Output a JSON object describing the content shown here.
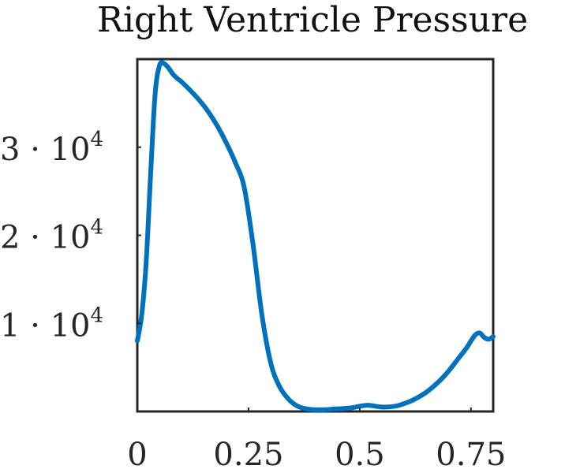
{
  "chart_data": {
    "type": "line",
    "title": "Right Ventricle Pressure",
    "xlabel": "",
    "ylabel": "",
    "xlim": [
      0,
      0.8
    ],
    "ylim": [
      0,
      40000
    ],
    "grid": false,
    "line_color": "#0072BD",
    "axis_color": "#262626",
    "x_ticks": [
      {
        "value": 0,
        "label": "0"
      },
      {
        "value": 0.25,
        "label": "0.25"
      },
      {
        "value": 0.5,
        "label": "0.5"
      },
      {
        "value": 0.75,
        "label": "0.75"
      }
    ],
    "y_ticks": [
      {
        "value": 10000,
        "mantissa": "1 · 10",
        "exponent": "4"
      },
      {
        "value": 20000,
        "mantissa": "2 · 10",
        "exponent": "4"
      },
      {
        "value": 30000,
        "mantissa": "3 · 10",
        "exponent": "4"
      }
    ],
    "series": [
      {
        "name": "Right Ventricle Pressure",
        "x": [
          0,
          0.01,
          0.02,
          0.03,
          0.04,
          0.05,
          0.06,
          0.07,
          0.08,
          0.09,
          0.1,
          0.12,
          0.14,
          0.16,
          0.18,
          0.2,
          0.22,
          0.24,
          0.26,
          0.28,
          0.3,
          0.32,
          0.34,
          0.36,
          0.38,
          0.4,
          0.42,
          0.45,
          0.48,
          0.5,
          0.52,
          0.55,
          0.58,
          0.6,
          0.62,
          0.65,
          0.68,
          0.7,
          0.72,
          0.74,
          0.75,
          0.76,
          0.77,
          0.78,
          0.79,
          0.8
        ],
        "values": [
          8000,
          11000,
          17000,
          27000,
          36000,
          39300,
          39500,
          39000,
          38300,
          37800,
          37400,
          36400,
          35300,
          34000,
          32400,
          30500,
          28300,
          25500,
          19000,
          11000,
          5500,
          2800,
          1400,
          600,
          300,
          200,
          200,
          300,
          400,
          600,
          700,
          500,
          600,
          900,
          1300,
          2200,
          3500,
          4600,
          5900,
          7200,
          8000,
          8700,
          8900,
          8400,
          8200,
          8500
        ]
      }
    ]
  }
}
